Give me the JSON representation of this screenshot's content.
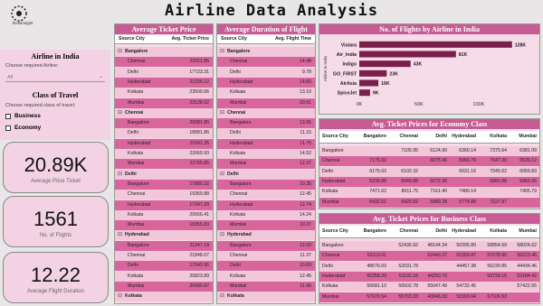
{
  "header": {
    "title": "Airline Data Analysis",
    "logo": "thebiinsight"
  },
  "filters": {
    "airline_title": "Airline in India",
    "airline_prompt": "Choose required Airline:",
    "airline_value": "All",
    "class_title": "Class of Travel",
    "class_prompt": "Choose required class of travel:",
    "class_options": [
      "Business",
      "Economy"
    ]
  },
  "kpis": [
    {
      "value": "20.89K",
      "label": "Average Price Ticket"
    },
    {
      "value": "1561",
      "label": "No. of Flights"
    },
    {
      "value": "12.22",
      "label": "Average Flight Duration"
    }
  ],
  "price_table": {
    "title": "Average Ticket Price",
    "columns": [
      "Source City",
      "Avg. Ticket Price"
    ],
    "groups": [
      {
        "city": "Bangalore",
        "rows": [
          [
            "Chennai",
            "23321.85"
          ],
          [
            "Delhi",
            "17723.31"
          ],
          [
            "Hyderabad",
            "21226.12"
          ],
          [
            "Kolkata",
            "23500.06"
          ],
          [
            "Mumbai",
            "23128.62"
          ]
        ]
      },
      {
        "city": "Chennai",
        "rows": [
          [
            "Bangalore",
            "25081.85"
          ],
          [
            "Delhi",
            "18981.86"
          ],
          [
            "Hyderabad",
            "21591.35"
          ],
          [
            "Kolkata",
            "22669.93"
          ],
          [
            "Mumbai",
            "22765.85"
          ]
        ]
      },
      {
        "city": "Delhi",
        "rows": [
          [
            "Bangalore",
            "17880.22"
          ],
          [
            "Chennai",
            "19369.88"
          ],
          [
            "Hyderabad",
            "17347.29"
          ],
          [
            "Kolkata",
            "20566.41"
          ],
          [
            "Mumbai",
            "19355.83"
          ]
        ]
      },
      {
        "city": "Hyderabad",
        "rows": [
          [
            "Bangalore",
            "21347.18"
          ],
          [
            "Chennai",
            "21848.07"
          ],
          [
            "Delhi",
            "17243.95"
          ],
          [
            "Kolkata",
            "20823.89"
          ],
          [
            "Mumbai",
            "20080.87"
          ]
        ]
      },
      {
        "city": "Kolkata",
        "rows": []
      }
    ]
  },
  "duration_table": {
    "title": "Average Duration of Flight",
    "columns": [
      "Source City",
      "Avg. Flight Time"
    ],
    "groups": [
      {
        "city": "Bangalore",
        "rows": [
          [
            "Chennai",
            "14.48"
          ],
          [
            "Delhi",
            "9.78"
          ],
          [
            "Hyderabad",
            "14.60"
          ],
          [
            "Kolkata",
            "13.10"
          ],
          [
            "Mumbai",
            "10.91"
          ]
        ]
      },
      {
        "city": "Chennai",
        "rows": [
          [
            "Bangalore",
            "13.95"
          ],
          [
            "Delhi",
            "11.15"
          ],
          [
            "Hyderabad",
            "11.75"
          ],
          [
            "Kolkata",
            "14.52"
          ],
          [
            "Mumbai",
            "12.37"
          ]
        ]
      },
      {
        "city": "Delhi",
        "rows": [
          [
            "Bangalore",
            "10.35"
          ],
          [
            "Chennai",
            "12.45"
          ],
          [
            "Hyderabad",
            "12.74"
          ],
          [
            "Kolkata",
            "14.24"
          ],
          [
            "Mumbai",
            "10.37"
          ]
        ]
      },
      {
        "city": "Hyderabad",
        "rows": [
          [
            "Bangalore",
            "12.09"
          ],
          [
            "Chennai",
            "11.37"
          ],
          [
            "Delhi",
            "10.83"
          ],
          [
            "Kolkata",
            "12.45"
          ],
          [
            "Mumbai",
            "11.96"
          ]
        ]
      },
      {
        "city": "Kolkata",
        "rows": []
      }
    ]
  },
  "chart_data": {
    "type": "hbar",
    "title": "No. of Flights by Airline in India",
    "ylabel": "Airline in India",
    "categories": [
      "Vistara",
      "Air_India",
      "Indigo",
      "GO_FIRST",
      "AirAsia",
      "SpiceJet"
    ],
    "values": [
      128000,
      81000,
      43000,
      23000,
      16000,
      9000
    ],
    "value_labels": [
      "128K",
      "81K",
      "43K",
      "23K",
      "16K",
      "9K"
    ],
    "color": "#7a1f4b",
    "xlim": [
      0,
      135000
    ],
    "xticks": [
      {
        "value": 0,
        "label": "0K"
      },
      {
        "value": 50000,
        "label": "50K"
      },
      {
        "value": 100000,
        "label": "100K"
      }
    ]
  },
  "economy_matrix": {
    "title": "Avg. Ticket Prices for Economy Class",
    "columns": [
      "Source City",
      "Bangalore",
      "Chennai",
      "Delhi",
      "Hyderabad",
      "Kolkata",
      "Mumbai"
    ],
    "rows": [
      [
        "Bangalore",
        null,
        "7105.95",
        "6124.90",
        "6360.14",
        "7375.64",
        "6381.09"
      ],
      [
        "Chennai",
        "7175.02",
        null,
        "6075.96",
        "5960.79",
        "7547.30",
        "6529.12"
      ],
      [
        "Delhi",
        "6175.62",
        "6102.32",
        null,
        "6031.16",
        "7045.62",
        "6059.83"
      ],
      [
        "Hyderabad",
        "6234.88",
        "6049.88",
        "6072.30",
        null,
        "6881.68",
        "5969.26"
      ],
      [
        "Kolkata",
        "7471.62",
        "8011.75",
        "7161.40",
        "7489.14",
        null,
        "7405.79"
      ],
      [
        "Mumbai",
        "6432.51",
        "6420.92",
        "5889.28",
        "5774.89",
        "7227.97",
        null
      ]
    ]
  },
  "business_matrix": {
    "title": "Avg. Ticket Prices for Business Class",
    "columns": [
      "Source City",
      "Bangalore",
      "Chennai",
      "Delhi",
      "Hyderabad",
      "Kolkata",
      "Mumbai"
    ],
    "rows": [
      [
        "Bangalore",
        null,
        "52436.92",
        "48144.34",
        "50395.80",
        "58854.69",
        "58024.62"
      ],
      [
        "Chennai",
        "53113.01",
        null,
        "52443.37",
        "51559.87",
        "57078.90",
        "56223.46"
      ],
      [
        "Delhi",
        "48576.03",
        "52031.78",
        null,
        "44457.38",
        "56239.85",
        "44434.46"
      ],
      [
        "Hyderabad",
        "50358.29",
        "51132.16",
        "44250.70",
        null,
        "53729.16",
        "52184.42"
      ],
      [
        "Kolkata",
        "56681.10",
        "56502.78",
        "55047.49",
        "54732.45",
        null,
        "57422.55"
      ],
      [
        "Mumbai",
        "57970.54",
        "55703.33",
        "43846.33",
        "51593.64",
        "57106.53",
        null
      ]
    ]
  }
}
